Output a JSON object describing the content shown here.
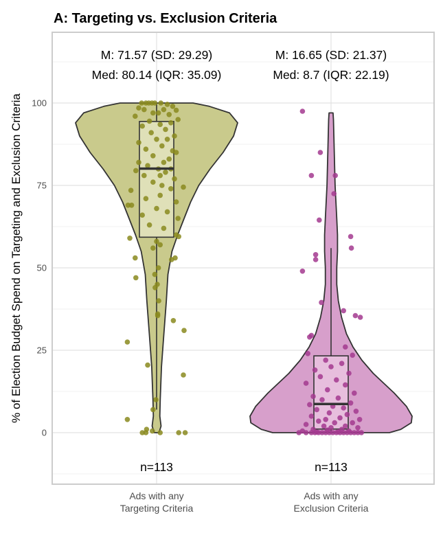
{
  "chart_data": {
    "type": "violin",
    "title": "A: Targeting vs. Exclusion Criteria",
    "ylabel": "% of Election Budget Spend on Targeting and Exclusion Criteria",
    "xlabel": "",
    "ylim": [
      -15,
      113
    ],
    "yticks": [
      0,
      25,
      50,
      75,
      100
    ],
    "grid": true,
    "legend": "none",
    "groups": [
      {
        "category_lines": [
          "Ads with any",
          "Targeting Criteria"
        ],
        "color": "#8a8a1f",
        "fill": "#c9ca8c",
        "box_fill": "#e6e7c7",
        "stats_line1": "M: 71.57 (SD: 29.29)",
        "stats_line2": "Med: 80.14 (IQR: 35.09)",
        "n_label": "n=113",
        "box": {
          "q1": 59.3,
          "median": 80.1,
          "q3": 94.4,
          "whisker_low": 7,
          "whisker_high": 100
        },
        "density": [
          [
            0,
            0.03
          ],
          [
            2,
            0.055
          ],
          [
            5,
            0.04
          ],
          [
            10,
            0.045
          ],
          [
            20,
            0.06
          ],
          [
            30,
            0.09
          ],
          [
            40,
            0.12
          ],
          [
            48,
            0.14
          ],
          [
            55,
            0.19
          ],
          [
            60,
            0.26
          ],
          [
            65,
            0.34
          ],
          [
            70,
            0.42
          ],
          [
            75,
            0.52
          ],
          [
            80,
            0.66
          ],
          [
            85,
            0.82
          ],
          [
            90,
            0.95
          ],
          [
            94,
            1.0
          ],
          [
            97,
            0.9
          ],
          [
            99,
            0.65
          ],
          [
            100,
            0.45
          ]
        ],
        "points": [
          [
            100,
            -0.42
          ],
          [
            100,
            -0.3
          ],
          [
            100,
            -0.22
          ],
          [
            100,
            -0.13
          ],
          [
            100,
            -0.05
          ],
          [
            100,
            0.12
          ],
          [
            99.6,
            0.3
          ],
          [
            99,
            0.45
          ],
          [
            98.5,
            -0.5
          ],
          [
            98,
            0.2
          ],
          [
            97.8,
            0.55
          ],
          [
            98,
            -0.35
          ],
          [
            97,
            -0.1
          ],
          [
            97,
            0.05
          ],
          [
            96.5,
            0.35
          ],
          [
            96,
            -0.6
          ],
          [
            95,
            0.6
          ],
          [
            94.5,
            -0.2
          ],
          [
            94,
            0.4
          ],
          [
            93.5,
            0.1
          ],
          [
            93,
            -0.4
          ],
          [
            92,
            0.25
          ],
          [
            91,
            -0.15
          ],
          [
            90,
            0.5
          ],
          [
            89,
            0.0
          ],
          [
            89,
            0.3
          ],
          [
            88,
            -0.5
          ],
          [
            87,
            0.15
          ],
          [
            86,
            -0.3
          ],
          [
            85.5,
            0.45
          ],
          [
            85,
            0.55
          ],
          [
            84,
            -0.1
          ],
          [
            83,
            0.35
          ],
          [
            82,
            -0.5
          ],
          [
            82,
            0.2
          ],
          [
            81,
            -0.25
          ],
          [
            80,
            0.05
          ],
          [
            80,
            0.4
          ],
          [
            79.5,
            -0.58
          ],
          [
            79,
            0.25
          ],
          [
            78,
            -0.35
          ],
          [
            78,
            0.1
          ],
          [
            77,
            0.5
          ],
          [
            76,
            -0.1
          ],
          [
            75,
            0.15
          ],
          [
            74.5,
            0.75
          ],
          [
            74,
            0.4
          ],
          [
            73.5,
            -0.72
          ],
          [
            72,
            0.1
          ],
          [
            71,
            -0.3
          ],
          [
            70,
            0.55
          ],
          [
            69,
            -0.8
          ],
          [
            69,
            -0.7
          ],
          [
            68,
            0.0
          ],
          [
            67,
            0.3
          ],
          [
            66,
            -0.4
          ],
          [
            65,
            0.6
          ],
          [
            63,
            -0.2
          ],
          [
            62,
            0.2
          ],
          [
            60,
            0.55
          ],
          [
            59.5,
            0.62
          ],
          [
            59,
            -0.75
          ],
          [
            58,
            0.0
          ],
          [
            57,
            0.1
          ],
          [
            56,
            -0.1
          ],
          [
            53,
            -0.6
          ],
          [
            53,
            0.52
          ],
          [
            52.5,
            0.42
          ],
          [
            50,
            0.05
          ],
          [
            48,
            -0.05
          ],
          [
            47,
            -0.58
          ],
          [
            45,
            0.02
          ],
          [
            44,
            -0.04
          ],
          [
            40,
            0.06
          ],
          [
            36,
            0.03
          ],
          [
            35.5,
            0.03
          ],
          [
            34,
            0.47
          ],
          [
            31,
            0.77
          ],
          [
            27.5,
            -0.82
          ],
          [
            20.5,
            -0.25
          ],
          [
            17.5,
            0.75
          ],
          [
            10,
            -0.02
          ],
          [
            7,
            -0.1
          ],
          [
            4,
            -0.82
          ],
          [
            1,
            -0.28
          ],
          [
            0.5,
            -0.12
          ],
          [
            0,
            -0.4
          ],
          [
            0,
            -0.3
          ],
          [
            0,
            0.1
          ],
          [
            0,
            0.62
          ],
          [
            0,
            0.8
          ]
        ]
      },
      {
        "category_lines": [
          "Ads with any",
          "Exclusion Criteria"
        ],
        "color": "#a3398f",
        "fill": "#d79fcb",
        "box_fill": "#ecc8e3",
        "stats_line1": "M: 16.65 (SD: 21.37)",
        "stats_line2": "Med: 8.7 (IQR: 22.19)",
        "n_label": "n=113",
        "box": {
          "q1": 1.1,
          "median": 8.7,
          "q3": 23.3,
          "whisker_low": 0,
          "whisker_high": 56
        },
        "density": [
          [
            0,
            0.72
          ],
          [
            1,
            0.86
          ],
          [
            3,
            0.99
          ],
          [
            5,
            1.0
          ],
          [
            8,
            0.93
          ],
          [
            12,
            0.78
          ],
          [
            15,
            0.65
          ],
          [
            18,
            0.52
          ],
          [
            22,
            0.38
          ],
          [
            26,
            0.27
          ],
          [
            30,
            0.19
          ],
          [
            35,
            0.13
          ],
          [
            40,
            0.09
          ],
          [
            45,
            0.07
          ],
          [
            50,
            0.07
          ],
          [
            55,
            0.08
          ],
          [
            60,
            0.08
          ],
          [
            65,
            0.07
          ],
          [
            70,
            0.06
          ],
          [
            75,
            0.05
          ],
          [
            80,
            0.045
          ],
          [
            85,
            0.04
          ],
          [
            90,
            0.035
          ],
          [
            95,
            0.03
          ],
          [
            97,
            0.025
          ]
        ],
        "points": [
          [
            97.5,
            -0.8
          ],
          [
            85,
            -0.3
          ],
          [
            78,
            -0.55
          ],
          [
            78,
            0.12
          ],
          [
            72.5,
            0.08
          ],
          [
            64.5,
            -0.33
          ],
          [
            59.5,
            0.55
          ],
          [
            56,
            0.57
          ],
          [
            54,
            -0.43
          ],
          [
            52.5,
            -0.43
          ],
          [
            49,
            -0.8
          ],
          [
            39.5,
            -0.27
          ],
          [
            37,
            0.35
          ],
          [
            35.5,
            0.68
          ],
          [
            35,
            0.82
          ],
          [
            29.5,
            -0.55
          ],
          [
            29,
            -0.6
          ],
          [
            26,
            0.4
          ],
          [
            24,
            -0.65
          ],
          [
            23.5,
            0.6
          ],
          [
            22,
            -0.15
          ],
          [
            21,
            0.3
          ],
          [
            20,
            0.0
          ],
          [
            19,
            -0.45
          ],
          [
            18,
            0.5
          ],
          [
            17,
            -0.3
          ],
          [
            16,
            0.15
          ],
          [
            15,
            -0.7
          ],
          [
            14.5,
            0.4
          ],
          [
            13,
            -0.1
          ],
          [
            12,
            0.65
          ],
          [
            11,
            -0.5
          ],
          [
            10.5,
            0.2
          ],
          [
            10,
            -0.25
          ],
          [
            9,
            0.55
          ],
          [
            8.5,
            -0.6
          ],
          [
            8,
            0.05
          ],
          [
            7.5,
            0.35
          ],
          [
            7,
            -0.4
          ],
          [
            6.5,
            0.7
          ],
          [
            6,
            -0.05
          ],
          [
            5.5,
            0.45
          ],
          [
            5,
            -0.55
          ],
          [
            4.5,
            0.25
          ],
          [
            4,
            -0.15
          ],
          [
            4,
            0.8
          ],
          [
            3.5,
            -0.35
          ],
          [
            3,
            0.6
          ],
          [
            3,
            0.1
          ],
          [
            2.5,
            -0.7
          ],
          [
            2,
            0.4
          ],
          [
            2,
            -0.2
          ],
          [
            1.5,
            0.0
          ],
          [
            1.5,
            0.75
          ],
          [
            1,
            -0.5
          ],
          [
            1,
            0.3
          ],
          [
            0.8,
            -0.1
          ],
          [
            0.5,
            0.5
          ],
          [
            0.5,
            -0.8
          ],
          [
            0.3,
            0.2
          ],
          [
            0.2,
            -0.4
          ],
          [
            0,
            -0.9
          ],
          [
            0,
            -0.7
          ],
          [
            0,
            -0.55
          ],
          [
            0,
            -0.45
          ],
          [
            0,
            -0.35
          ],
          [
            0,
            -0.25
          ],
          [
            0,
            -0.15
          ],
          [
            0,
            -0.05
          ],
          [
            0,
            0.05
          ],
          [
            0,
            0.15
          ],
          [
            0,
            0.25
          ],
          [
            0,
            0.35
          ],
          [
            0,
            0.45
          ],
          [
            0,
            0.55
          ],
          [
            0,
            0.65
          ],
          [
            0,
            0.75
          ],
          [
            0,
            0.85
          ]
        ]
      }
    ]
  }
}
